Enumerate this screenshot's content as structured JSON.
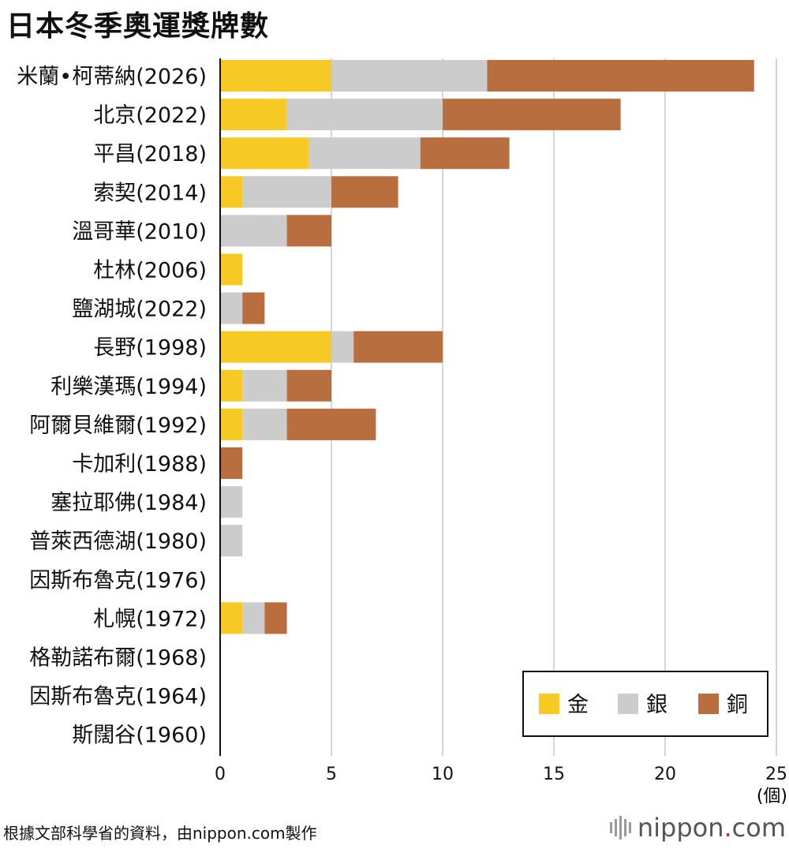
{
  "title": "日本冬季奧運獎牌數",
  "source": "根據文部科學省的資料，由nippon.com製作",
  "brand": {
    "name": "nippon",
    "dot": ".",
    "tld": "com",
    "icon": "nippon-bars-icon"
  },
  "colors": {
    "gold": "#f7c924",
    "silver": "#cbcccb",
    "bronze": "#b96e40",
    "grid": "#c8c8c8",
    "axis": "#111111"
  },
  "chart_data": {
    "type": "bar",
    "orientation": "horizontal",
    "stacked": true,
    "title": "日本冬季奧運獎牌數",
    "unit_label": "(個)",
    "categories": [
      "米蘭•柯蒂納(2026)",
      "北京(2022)",
      "平昌(2018)",
      "索契(2014)",
      "溫哥華(2010)",
      "杜林(2006)",
      "鹽湖城(2022)",
      "長野(1998)",
      "利樂漢瑪(1994)",
      "阿爾貝維爾(1992)",
      "卡加利(1988)",
      "塞拉耶佛(1984)",
      "普萊西德湖(1980)",
      "因斯布魯克(1976)",
      "札幌(1972)",
      "格勒諾布爾(1968)",
      "因斯布魯克(1964)",
      "斯闊谷(1960)"
    ],
    "series": [
      {
        "name": "金",
        "color": "#f7c924",
        "values": [
          5,
          3,
          4,
          1,
          0,
          1,
          0,
          5,
          1,
          1,
          0,
          0,
          0,
          0,
          1,
          0,
          0,
          0
        ]
      },
      {
        "name": "銀",
        "color": "#cbcccb",
        "values": [
          7,
          7,
          5,
          4,
          3,
          0,
          1,
          1,
          2,
          2,
          0,
          1,
          1,
          0,
          1,
          0,
          0,
          0
        ]
      },
      {
        "name": "銅",
        "color": "#b96e40",
        "values": [
          12,
          8,
          4,
          3,
          2,
          0,
          1,
          4,
          2,
          4,
          1,
          0,
          0,
          0,
          1,
          0,
          0,
          0
        ]
      }
    ],
    "xlim": [
      0,
      25
    ],
    "xticks": [
      0,
      5,
      10,
      15,
      20,
      25
    ],
    "grid": true,
    "legend": "bottom-right"
  }
}
